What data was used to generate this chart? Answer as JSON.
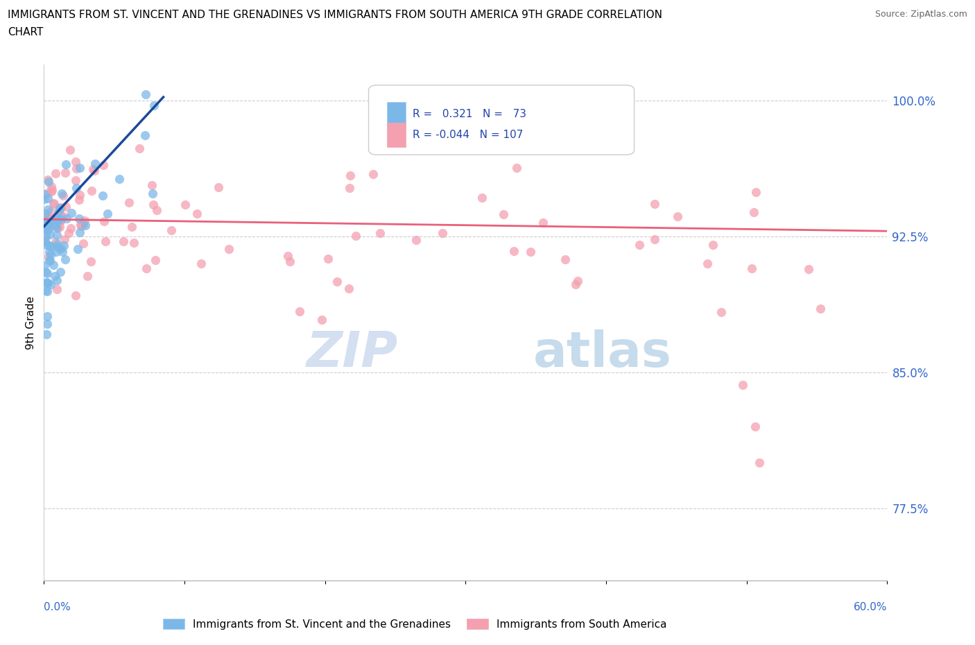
{
  "title_line1": "IMMIGRANTS FROM ST. VINCENT AND THE GRENADINES VS IMMIGRANTS FROM SOUTH AMERICA 9TH GRADE CORRELATION",
  "title_line2": "CHART",
  "source": "Source: ZipAtlas.com",
  "ylabel": "9th Grade",
  "xmin": 0.0,
  "xmax": 0.6,
  "ymin": 0.735,
  "ymax": 1.02,
  "ytick_vals": [
    0.775,
    0.85,
    0.925,
    1.0
  ],
  "ytick_labels": [
    "77.5%",
    "85.0%",
    "92.5%",
    "100.0%"
  ],
  "blue_R": 0.321,
  "blue_N": 73,
  "pink_R": -0.044,
  "pink_N": 107,
  "blue_color": "#7bb8e8",
  "pink_color": "#f4a0b0",
  "blue_line_color": "#1a4a9a",
  "pink_line_color": "#e8607a",
  "watermark_color": "#d0ddf0",
  "legend_label_blue": "Immigrants from St. Vincent and the Grenadines",
  "legend_label_pink": "Immigrants from South America",
  "blue_trend_x0": 0.0,
  "blue_trend_x1": 0.085,
  "blue_trend_y0": 0.9305,
  "blue_trend_y1": 1.002,
  "pink_trend_x0": 0.0,
  "pink_trend_x1": 0.6,
  "pink_trend_y0": 0.9345,
  "pink_trend_y1": 0.928
}
